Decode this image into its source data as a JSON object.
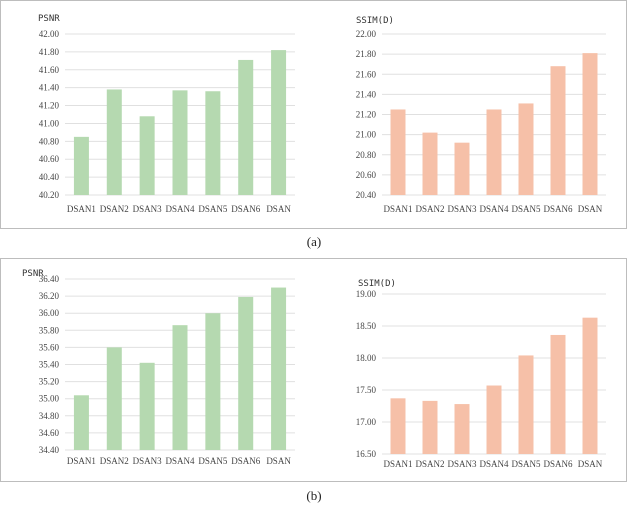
{
  "captions": {
    "a": "(a)",
    "b": "(b)"
  },
  "chart_data": [
    {
      "id": "a-psnr",
      "type": "bar",
      "ylabel": "PSNR",
      "categories": [
        "DSAN1",
        "DSAN2",
        "DSAN3",
        "DSAN4",
        "DSAN5",
        "DSAN6",
        "DSAN"
      ],
      "values": [
        40.85,
        41.38,
        41.08,
        41.37,
        41.36,
        41.71,
        41.82
      ],
      "ylim": [
        40.2,
        42.0
      ],
      "yticks": [
        "40.20",
        "40.40",
        "40.60",
        "40.80",
        "41.00",
        "41.20",
        "41.40",
        "41.60",
        "41.80",
        "42.00"
      ],
      "grid": true,
      "color": "#b5d9b0"
    },
    {
      "id": "a-ssim",
      "type": "bar",
      "ylabel": "SSIM(D)",
      "categories": [
        "DSAN1",
        "DSAN2",
        "DSAN3",
        "DSAN4",
        "DSAN5",
        "DSAN6",
        "DSAN"
      ],
      "values": [
        21.25,
        21.02,
        20.92,
        21.25,
        21.31,
        21.68,
        21.81
      ],
      "ylim": [
        20.4,
        22.0
      ],
      "yticks": [
        "20.40",
        "20.60",
        "20.80",
        "21.00",
        "21.20",
        "21.40",
        "21.60",
        "21.80",
        "22.00"
      ],
      "grid": true,
      "color": "#f6c0a8"
    },
    {
      "id": "b-psnr",
      "type": "bar",
      "ylabel": "PSNR",
      "categories": [
        "DSAN1",
        "DSAN2",
        "DSAN3",
        "DSAN4",
        "DSAN5",
        "DSAN6",
        "DSAN"
      ],
      "values": [
        35.04,
        35.6,
        35.42,
        35.86,
        36.0,
        36.19,
        36.3
      ],
      "ylim": [
        34.4,
        36.4
      ],
      "yticks": [
        "34.40",
        "34.60",
        "34.80",
        "35.00",
        "35.20",
        "35.40",
        "35.60",
        "35.80",
        "36.00",
        "36.20",
        "36.40"
      ],
      "grid": true,
      "color": "#b5d9b0"
    },
    {
      "id": "b-ssim",
      "type": "bar",
      "ylabel": "SSIM(D)",
      "categories": [
        "DSAN1",
        "DSAN2",
        "DSAN3",
        "DSAN4",
        "DSAN5",
        "DSAN6",
        "DSAN"
      ],
      "values": [
        17.37,
        17.33,
        17.28,
        17.57,
        18.04,
        18.36,
        18.63
      ],
      "ylim": [
        16.5,
        19.0
      ],
      "yticks": [
        "16.50",
        "17.00",
        "17.50",
        "18.00",
        "18.50",
        "19.00"
      ],
      "grid": true,
      "color": "#f6c0a8"
    }
  ]
}
